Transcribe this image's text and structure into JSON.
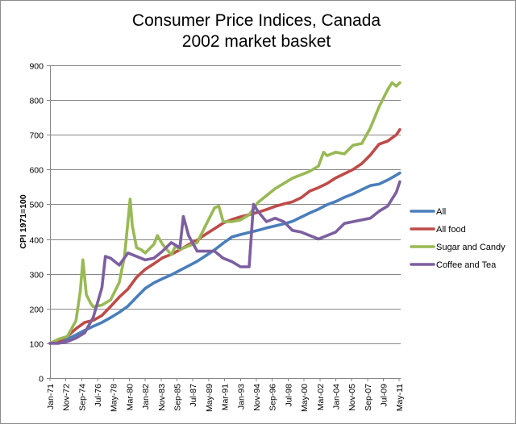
{
  "chart_data": {
    "type": "line",
    "title": [
      "Consumer Price Indices, Canada",
      "2002 market basket"
    ],
    "xlabel": "",
    "ylabel": "CPI 1971=100",
    "ylim": [
      0,
      900
    ],
    "yticks": [
      0,
      100,
      200,
      300,
      400,
      500,
      600,
      700,
      800,
      900
    ],
    "xlim": [
      1971.0,
      2011.5
    ],
    "grid": "horizontal",
    "legend_position": "right",
    "x_tick_labels": [
      {
        "label": "Jan-71",
        "x": 1971.0
      },
      {
        "label": "Nov-72",
        "x": 1972.83
      },
      {
        "label": "Sep-74",
        "x": 1974.67
      },
      {
        "label": "Jul-76",
        "x": 1976.5
      },
      {
        "label": "May-78",
        "x": 1978.33
      },
      {
        "label": "Mar-80",
        "x": 1980.17
      },
      {
        "label": "Jan-82",
        "x": 1982.0
      },
      {
        "label": "Nov-83",
        "x": 1983.83
      },
      {
        "label": "Sep-85",
        "x": 1985.67
      },
      {
        "label": "Jul-87",
        "x": 1987.5
      },
      {
        "label": "May-89",
        "x": 1989.33
      },
      {
        "label": "Mar-91",
        "x": 1991.17
      },
      {
        "label": "Jan-93",
        "x": 1993.0
      },
      {
        "label": "Nov-94",
        "x": 1994.83
      },
      {
        "label": "Sep-96",
        "x": 1996.67
      },
      {
        "label": "Jul-98",
        "x": 1998.5
      },
      {
        "label": "May-00",
        "x": 2000.33
      },
      {
        "label": "Mar-02",
        "x": 2002.17
      },
      {
        "label": "Jan-04",
        "x": 2004.0
      },
      {
        "label": "Nov-05",
        "x": 2005.83
      },
      {
        "label": "Sep-07",
        "x": 2007.67
      },
      {
        "label": "Jul-09",
        "x": 2009.5
      },
      {
        "label": "May-11",
        "x": 2011.33
      }
    ],
    "series": [
      {
        "name": "All",
        "color": "#4a7ebb",
        "points": [
          [
            1971,
            100
          ],
          [
            1972,
            104
          ],
          [
            1973,
            112
          ],
          [
            1974,
            124
          ],
          [
            1975,
            137
          ],
          [
            1976,
            149
          ],
          [
            1977,
            160
          ],
          [
            1978,
            174
          ],
          [
            1979,
            189
          ],
          [
            1980,
            207
          ],
          [
            1981,
            233
          ],
          [
            1982,
            258
          ],
          [
            1983,
            274
          ],
          [
            1984,
            286
          ],
          [
            1985,
            297
          ],
          [
            1986,
            310
          ],
          [
            1987,
            323
          ],
          [
            1988,
            336
          ],
          [
            1989,
            352
          ],
          [
            1990,
            369
          ],
          [
            1991,
            388
          ],
          [
            1992,
            406
          ],
          [
            1993,
            413
          ],
          [
            1994,
            419
          ],
          [
            1995,
            425
          ],
          [
            1996,
            432
          ],
          [
            1997,
            438
          ],
          [
            1998,
            444
          ],
          [
            1999,
            451
          ],
          [
            2000,
            463
          ],
          [
            2001,
            475
          ],
          [
            2002,
            486
          ],
          [
            2003,
            499
          ],
          [
            2004,
            508
          ],
          [
            2005,
            520
          ],
          [
            2006,
            530
          ],
          [
            2007,
            542
          ],
          [
            2008,
            554
          ],
          [
            2009,
            558
          ],
          [
            2010,
            570
          ],
          [
            2011,
            584
          ],
          [
            2011.4,
            590
          ]
        ]
      },
      {
        "name": "All food",
        "color": "#be4b48",
        "points": [
          [
            1971,
            100
          ],
          [
            1972,
            106
          ],
          [
            1973,
            120
          ],
          [
            1974,
            142
          ],
          [
            1975,
            160
          ],
          [
            1976,
            166
          ],
          [
            1977,
            180
          ],
          [
            1978,
            206
          ],
          [
            1979,
            233
          ],
          [
            1980,
            256
          ],
          [
            1981,
            290
          ],
          [
            1982,
            313
          ],
          [
            1983,
            329
          ],
          [
            1984,
            346
          ],
          [
            1985,
            356
          ],
          [
            1986,
            369
          ],
          [
            1987,
            384
          ],
          [
            1988,
            397
          ],
          [
            1989,
            414
          ],
          [
            1990,
            430
          ],
          [
            1991,
            446
          ],
          [
            1992,
            456
          ],
          [
            1993,
            464
          ],
          [
            1994,
            470
          ],
          [
            1995,
            477
          ],
          [
            1996,
            485
          ],
          [
            1997,
            494
          ],
          [
            1998,
            501
          ],
          [
            1999,
            507
          ],
          [
            2000,
            519
          ],
          [
            2001,
            538
          ],
          [
            2002,
            548
          ],
          [
            2003,
            560
          ],
          [
            2004,
            576
          ],
          [
            2005,
            588
          ],
          [
            2006,
            600
          ],
          [
            2007,
            617
          ],
          [
            2008,
            642
          ],
          [
            2009,
            673
          ],
          [
            2010,
            682
          ],
          [
            2011,
            700
          ],
          [
            2011.4,
            715
          ]
        ]
      },
      {
        "name": "Sugar and Candy",
        "color": "#98b954",
        "points": [
          [
            1971,
            100
          ],
          [
            1972,
            112
          ],
          [
            1973,
            120
          ],
          [
            1974,
            165
          ],
          [
            1974.5,
            250
          ],
          [
            1974.8,
            340
          ],
          [
            1975.2,
            240
          ],
          [
            1975.7,
            215
          ],
          [
            1976,
            205
          ],
          [
            1977,
            210
          ],
          [
            1978,
            225
          ],
          [
            1979,
            275
          ],
          [
            1979.6,
            350
          ],
          [
            1980,
            450
          ],
          [
            1980.25,
            515
          ],
          [
            1980.5,
            440
          ],
          [
            1981,
            375
          ],
          [
            1981.5,
            370
          ],
          [
            1982,
            360
          ],
          [
            1983,
            385
          ],
          [
            1983.4,
            410
          ],
          [
            1984,
            385
          ],
          [
            1985,
            355
          ],
          [
            1985.5,
            380
          ],
          [
            1986,
            370
          ],
          [
            1987,
            380
          ],
          [
            1988,
            390
          ],
          [
            1989,
            440
          ],
          [
            1990,
            490
          ],
          [
            1990.5,
            495
          ],
          [
            1991,
            450
          ],
          [
            1992,
            450
          ],
          [
            1993,
            455
          ],
          [
            1994,
            470
          ],
          [
            1995,
            505
          ],
          [
            1996,
            525
          ],
          [
            1997,
            545
          ],
          [
            1998,
            560
          ],
          [
            1999,
            575
          ],
          [
            2000,
            585
          ],
          [
            2001,
            595
          ],
          [
            2002,
            610
          ],
          [
            2002.6,
            650
          ],
          [
            2003,
            640
          ],
          [
            2004,
            650
          ],
          [
            2005,
            645
          ],
          [
            2006,
            670
          ],
          [
            2007,
            675
          ],
          [
            2008,
            720
          ],
          [
            2009,
            780
          ],
          [
            2010,
            830
          ],
          [
            2010.5,
            850
          ],
          [
            2011,
            840
          ],
          [
            2011.4,
            850
          ]
        ]
      },
      {
        "name": "Coffee and Tea",
        "color": "#7d5fa0",
        "points": [
          [
            1971,
            100
          ],
          [
            1972,
            100
          ],
          [
            1973,
            105
          ],
          [
            1974,
            115
          ],
          [
            1975,
            130
          ],
          [
            1976,
            175
          ],
          [
            1977,
            260
          ],
          [
            1977.4,
            350
          ],
          [
            1978,
            345
          ],
          [
            1979,
            325
          ],
          [
            1980,
            360
          ],
          [
            1981,
            350
          ],
          [
            1982,
            340
          ],
          [
            1983,
            345
          ],
          [
            1984,
            365
          ],
          [
            1985,
            390
          ],
          [
            1986,
            375
          ],
          [
            1986.4,
            465
          ],
          [
            1987,
            410
          ],
          [
            1988,
            365
          ],
          [
            1989,
            365
          ],
          [
            1990,
            365
          ],
          [
            1991,
            345
          ],
          [
            1992,
            335
          ],
          [
            1993,
            320
          ],
          [
            1994,
            320
          ],
          [
            1994.5,
            500
          ],
          [
            1995,
            480
          ],
          [
            1996,
            450
          ],
          [
            1997,
            460
          ],
          [
            1998,
            450
          ],
          [
            1999,
            425
          ],
          [
            2000,
            420
          ],
          [
            2001,
            410
          ],
          [
            2002,
            400
          ],
          [
            2003,
            410
          ],
          [
            2004,
            420
          ],
          [
            2005,
            445
          ],
          [
            2006,
            450
          ],
          [
            2007,
            455
          ],
          [
            2008,
            460
          ],
          [
            2009,
            480
          ],
          [
            2010,
            495
          ],
          [
            2011,
            535
          ],
          [
            2011.4,
            565
          ]
        ]
      }
    ]
  }
}
